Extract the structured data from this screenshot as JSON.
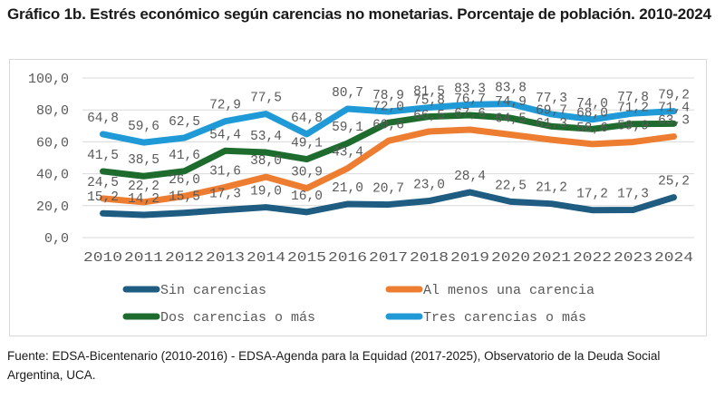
{
  "title": "Gráfico 1b. Estrés económico según carencias no monetarias. Porcentaje de población. 2010-2024",
  "source": "Fuente: EDSA-Bicentenario (2010-2016) - EDSA-Agenda para la Equidad (2017-2025), Observatorio de la Deuda Social Argentina, UCA.",
  "chart_data": {
    "type": "line",
    "title": "Gráfico 1b. Estrés económico según carencias no monetarias. Porcentaje de población. 2010-2024",
    "xlabel": "",
    "ylabel": "",
    "ylim": [
      0,
      100
    ],
    "yticks": [
      0,
      20,
      40,
      60,
      80,
      100
    ],
    "ytick_labels": [
      "0,0",
      "20,0",
      "40,0",
      "60,0",
      "80,0",
      "100,0"
    ],
    "grid": true,
    "legend_position": "bottom",
    "categories": [
      "2010",
      "2011",
      "2012",
      "2013",
      "2014",
      "2015",
      "2016",
      "2017",
      "2018",
      "2019",
      "2020",
      "2021",
      "2022",
      "2023",
      "2024"
    ],
    "series": [
      {
        "name": "Sin carencias",
        "color": "#1f5c82",
        "values": [
          15.2,
          14.2,
          15.5,
          17.3,
          19.0,
          16.0,
          21.0,
          20.7,
          23.0,
          28.4,
          22.5,
          21.2,
          17.2,
          17.3,
          25.2
        ],
        "labels": [
          "15,2",
          "14,2",
          "15,5",
          "17,3",
          "19,0",
          "16,0",
          "21,0",
          "20,7",
          "23,0",
          "28,4",
          "22,5",
          "21,2",
          "17,2",
          "17,3",
          "25,2"
        ]
      },
      {
        "name": "Al menos una carencia",
        "color": "#ed7d31",
        "values": [
          24.5,
          22.2,
          26.0,
          31.6,
          38.0,
          30.9,
          43.4,
          60.6,
          66.5,
          67.6,
          64.5,
          61.3,
          58.6,
          59.9,
          63.3
        ],
        "labels": [
          "24,5",
          "22,2",
          "26,0",
          "31,6",
          "38,0",
          "30,9",
          "43,4",
          "60,6",
          "66,5",
          "67,6",
          "64,5",
          "61,3",
          "58,6",
          "59,9",
          "63,3"
        ]
      },
      {
        "name": "Dos carencias o más",
        "color": "#1e6b2e",
        "values": [
          41.5,
          38.5,
          41.6,
          54.4,
          53.4,
          49.1,
          59.1,
          72.0,
          75.8,
          76.7,
          74.9,
          69.7,
          68.0,
          71.2,
          71.4
        ],
        "labels": [
          "41,5",
          "38,5",
          "41,6",
          "54,4",
          "53,4",
          "49,1",
          "59,1",
          "72,0",
          "75,8",
          "76,7",
          "74,9",
          "69,7",
          "68,0",
          "71,2",
          "71,4"
        ]
      },
      {
        "name": "Tres carencias o más",
        "color": "#1f9ad6",
        "values": [
          64.8,
          59.6,
          62.5,
          72.9,
          77.5,
          64.8,
          80.7,
          78.9,
          81.5,
          83.3,
          83.8,
          77.3,
          74.0,
          77.8,
          79.2
        ],
        "labels": [
          "64,8",
          "59,6",
          "62,5",
          "72,9",
          "77,5",
          "64,8",
          "80,7",
          "78,9",
          "81,5",
          "83,3",
          "83,8",
          "77,3",
          "74,0",
          "77,8",
          "79,2"
        ]
      }
    ]
  }
}
